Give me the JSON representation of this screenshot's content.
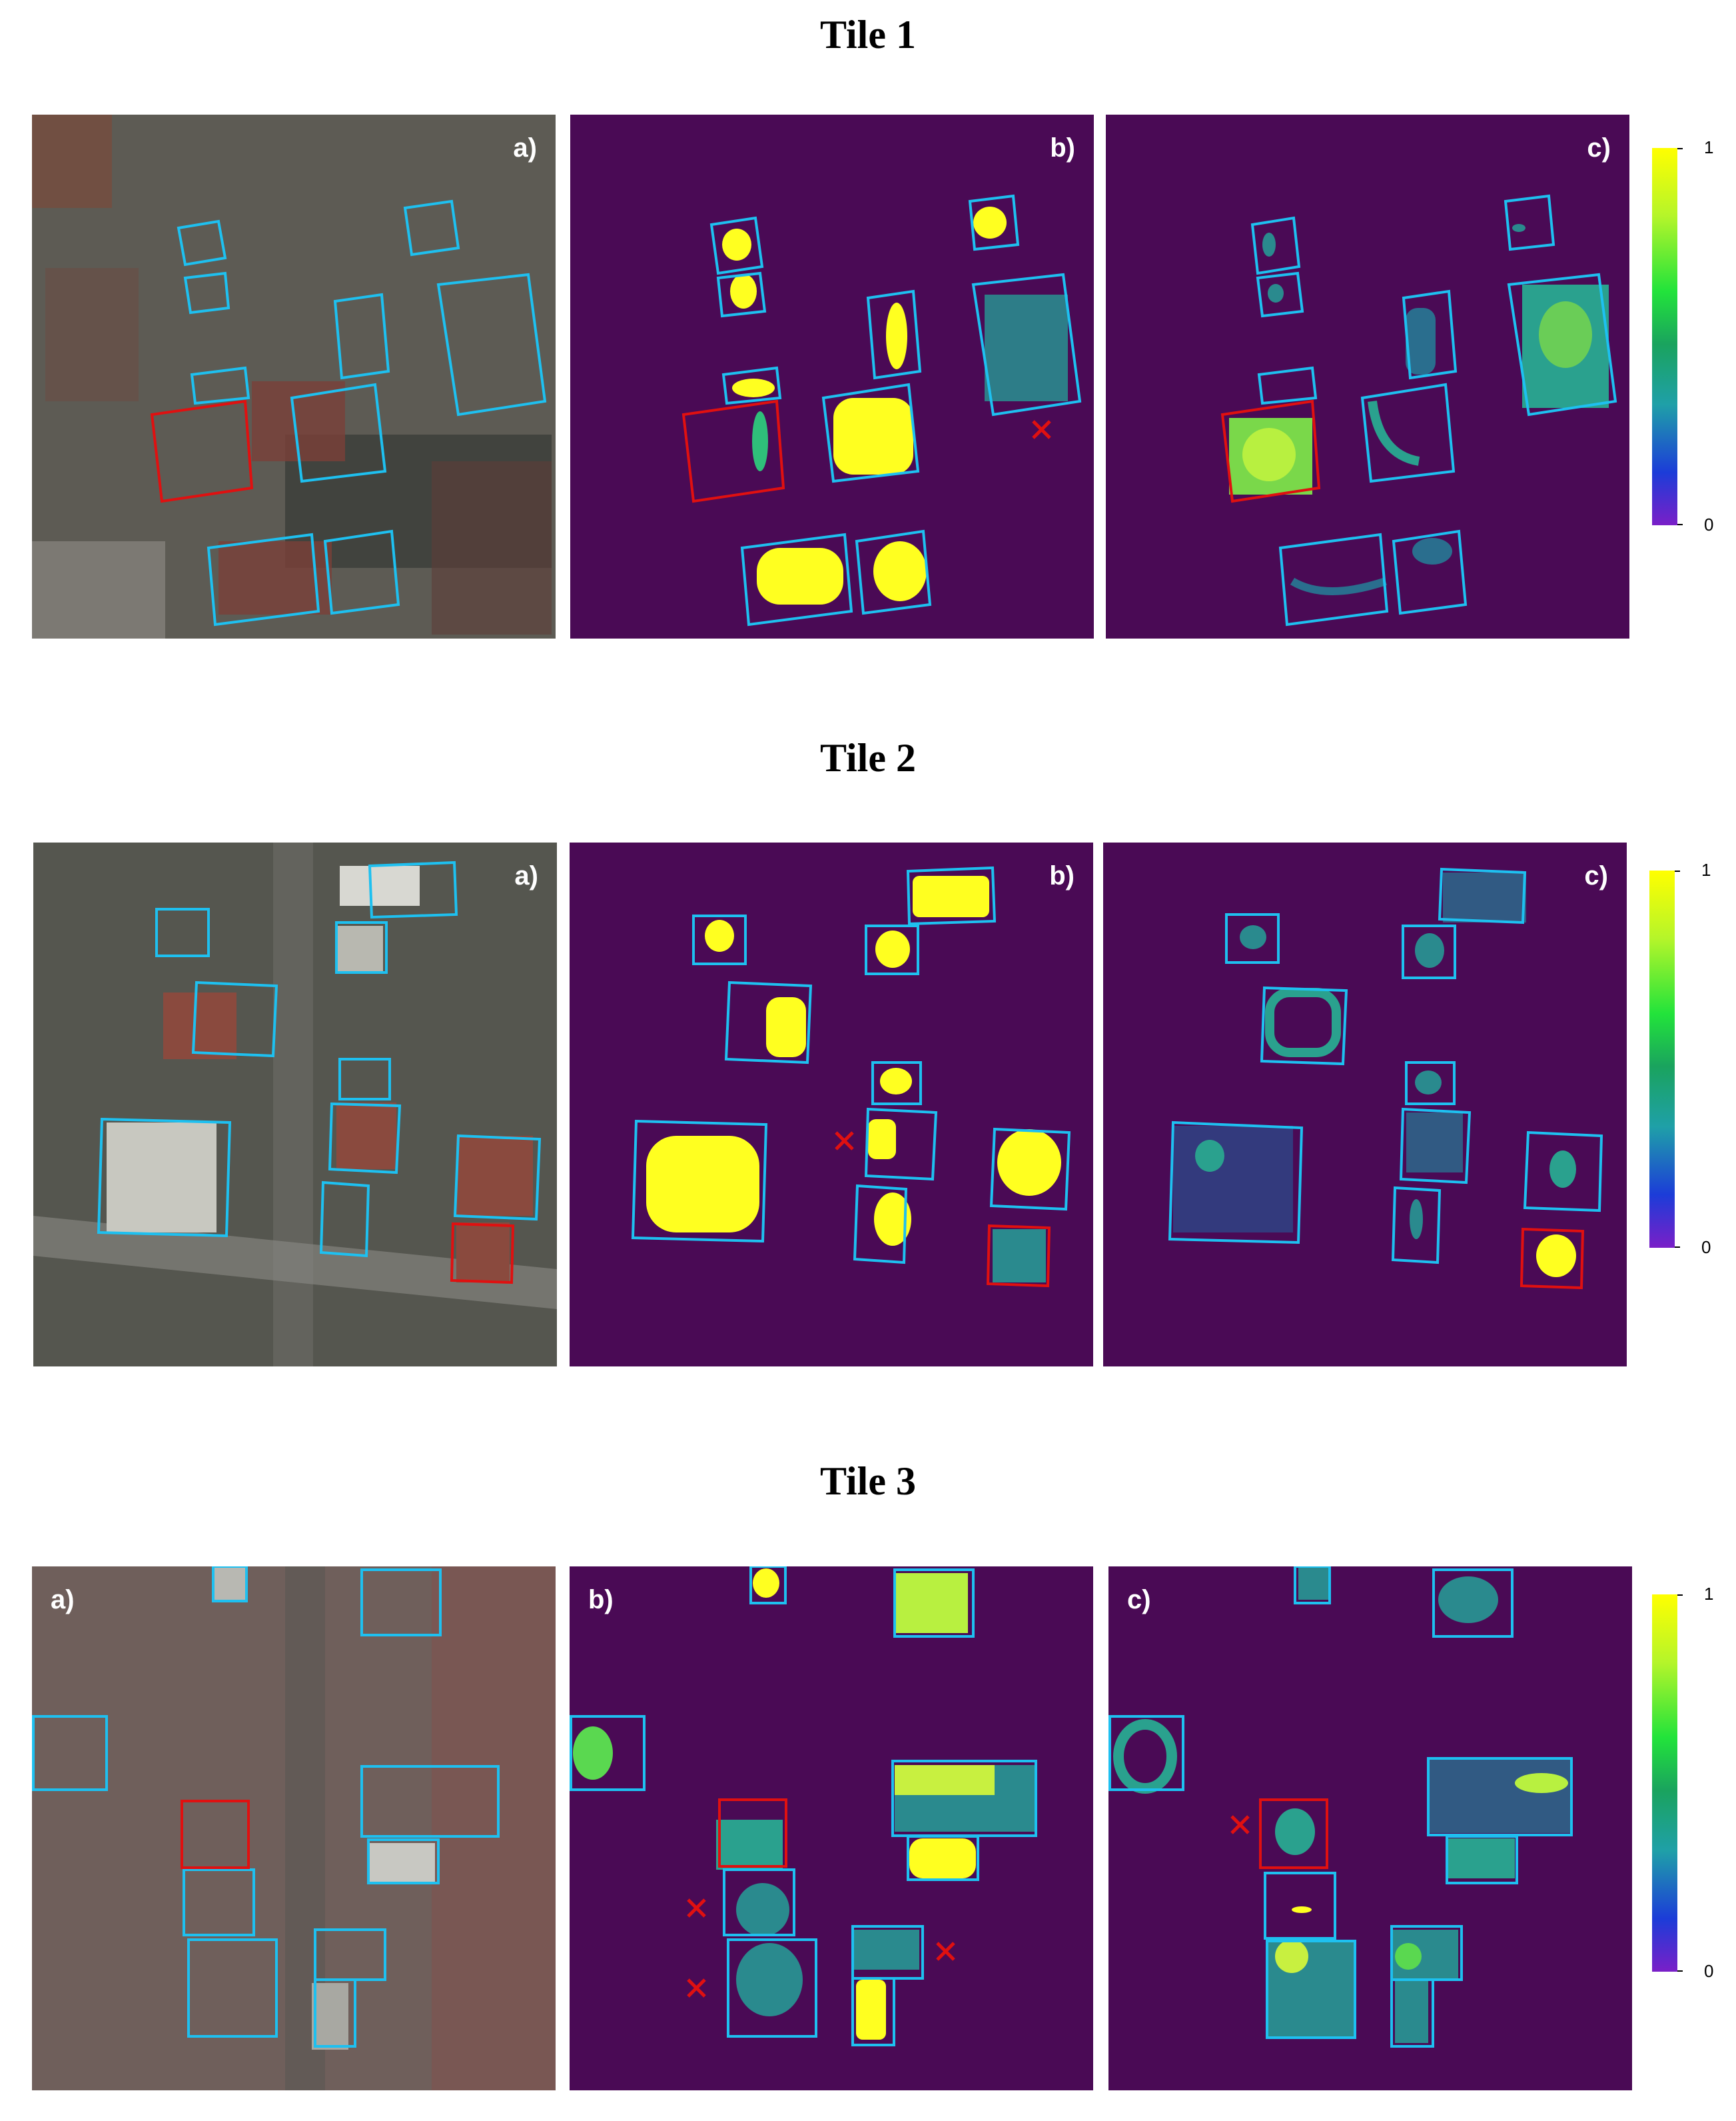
{
  "tiles": [
    {
      "title": "Tile 1",
      "labels": {
        "a": "a)",
        "b": "b)",
        "c": "c)"
      }
    },
    {
      "title": "Tile 2",
      "labels": {
        "a": "a)",
        "b": "b)",
        "c": "c)"
      }
    },
    {
      "title": "Tile 3",
      "labels": {
        "a": "a)",
        "b": "b)",
        "c": "c)"
      }
    }
  ],
  "colorbar": {
    "max_label": "1",
    "min_label": "0"
  },
  "colors": {
    "box_blue": "#1ec0f0",
    "box_red": "#e01010",
    "cross_red": "#e01010",
    "heat_bg": "#4a0a55"
  }
}
